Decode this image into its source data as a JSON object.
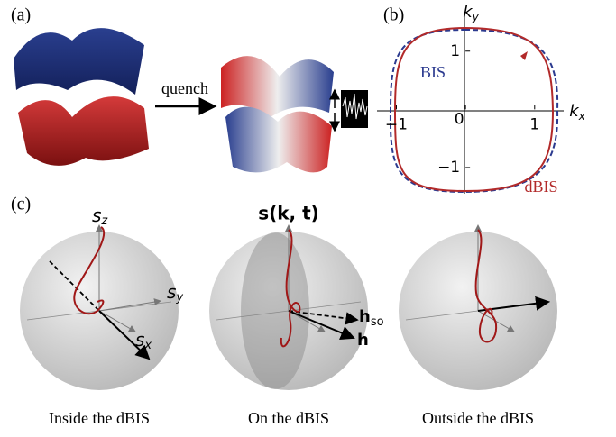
{
  "panel_a": {
    "label": "(a)",
    "arrow_label": "quench"
  },
  "panel_b": {
    "label": "(b)",
    "x_label": {
      "base": "k",
      "sub": "x"
    },
    "y_label": {
      "base": "k",
      "sub": "y"
    },
    "xlim": [
      -1.28,
      1.42
    ],
    "ylim": [
      -1.45,
      1.6
    ],
    "xticks": [
      {
        "value": -1,
        "label": "−1"
      },
      0,
      1
    ],
    "yticks": [
      {
        "value": -1,
        "label": "−1"
      },
      1
    ],
    "curves": [
      {
        "name": "BIS",
        "color": "#2b3a8f"
      },
      {
        "name": "dBIS",
        "color": "#b22a2a"
      }
    ]
  },
  "panel_c": {
    "label": "(c)",
    "sphere_1": {
      "s_z": {
        "base": "s",
        "sub": "z"
      },
      "s_y": {
        "base": "s",
        "sub": "y"
      },
      "s_x": {
        "base": "s",
        "sub": "x"
      },
      "caption": "Inside the dBIS"
    },
    "sphere_2": {
      "title": "s(k, t)",
      "h_so": {
        "base": "h",
        "sub": "so"
      },
      "h": "h",
      "caption": "On the dBIS"
    },
    "sphere_3": {
      "caption": "Outside the dBIS"
    }
  }
}
